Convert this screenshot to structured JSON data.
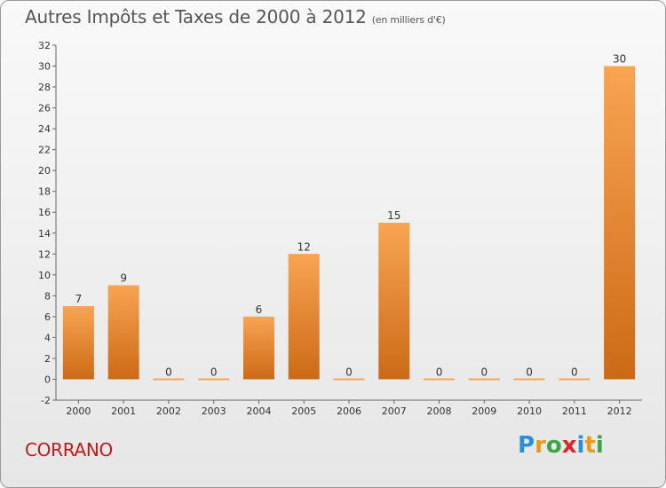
{
  "title": "Autres Impôts et Taxes de 2000 à 2012",
  "subtitle": "(en milliers d'€)",
  "place": "CORRANO",
  "logo": {
    "letters": [
      "P",
      "r",
      "o",
      "x",
      "i",
      "t",
      "i"
    ],
    "colors": [
      "#2a8fd6",
      "#e89a1b",
      "#3aa547",
      "#d62a2a",
      "#2a8fd6",
      "#e89a1b",
      "#3aa547"
    ]
  },
  "colors": {
    "bar_top": "#f8a452",
    "bar_bottom": "#cc6a16",
    "title": "#555555",
    "place": "#c41717"
  },
  "chart_data": {
    "type": "bar",
    "categories": [
      "2000",
      "2001",
      "2002",
      "2003",
      "2004",
      "2005",
      "2006",
      "2007",
      "2008",
      "2009",
      "2010",
      "2011",
      "2012"
    ],
    "values": [
      7,
      9,
      0,
      0,
      6,
      12,
      0,
      15,
      0,
      0,
      0,
      0,
      30
    ],
    "title": "Autres Impôts et Taxes de 2000 à 2012",
    "subtitle": "(en milliers d'€)",
    "ylim": [
      -2,
      32
    ],
    "yticks": [
      -2,
      0,
      2,
      4,
      6,
      8,
      10,
      12,
      14,
      16,
      18,
      20,
      22,
      24,
      26,
      28,
      30,
      32
    ],
    "grid": false,
    "data_labels": true
  }
}
